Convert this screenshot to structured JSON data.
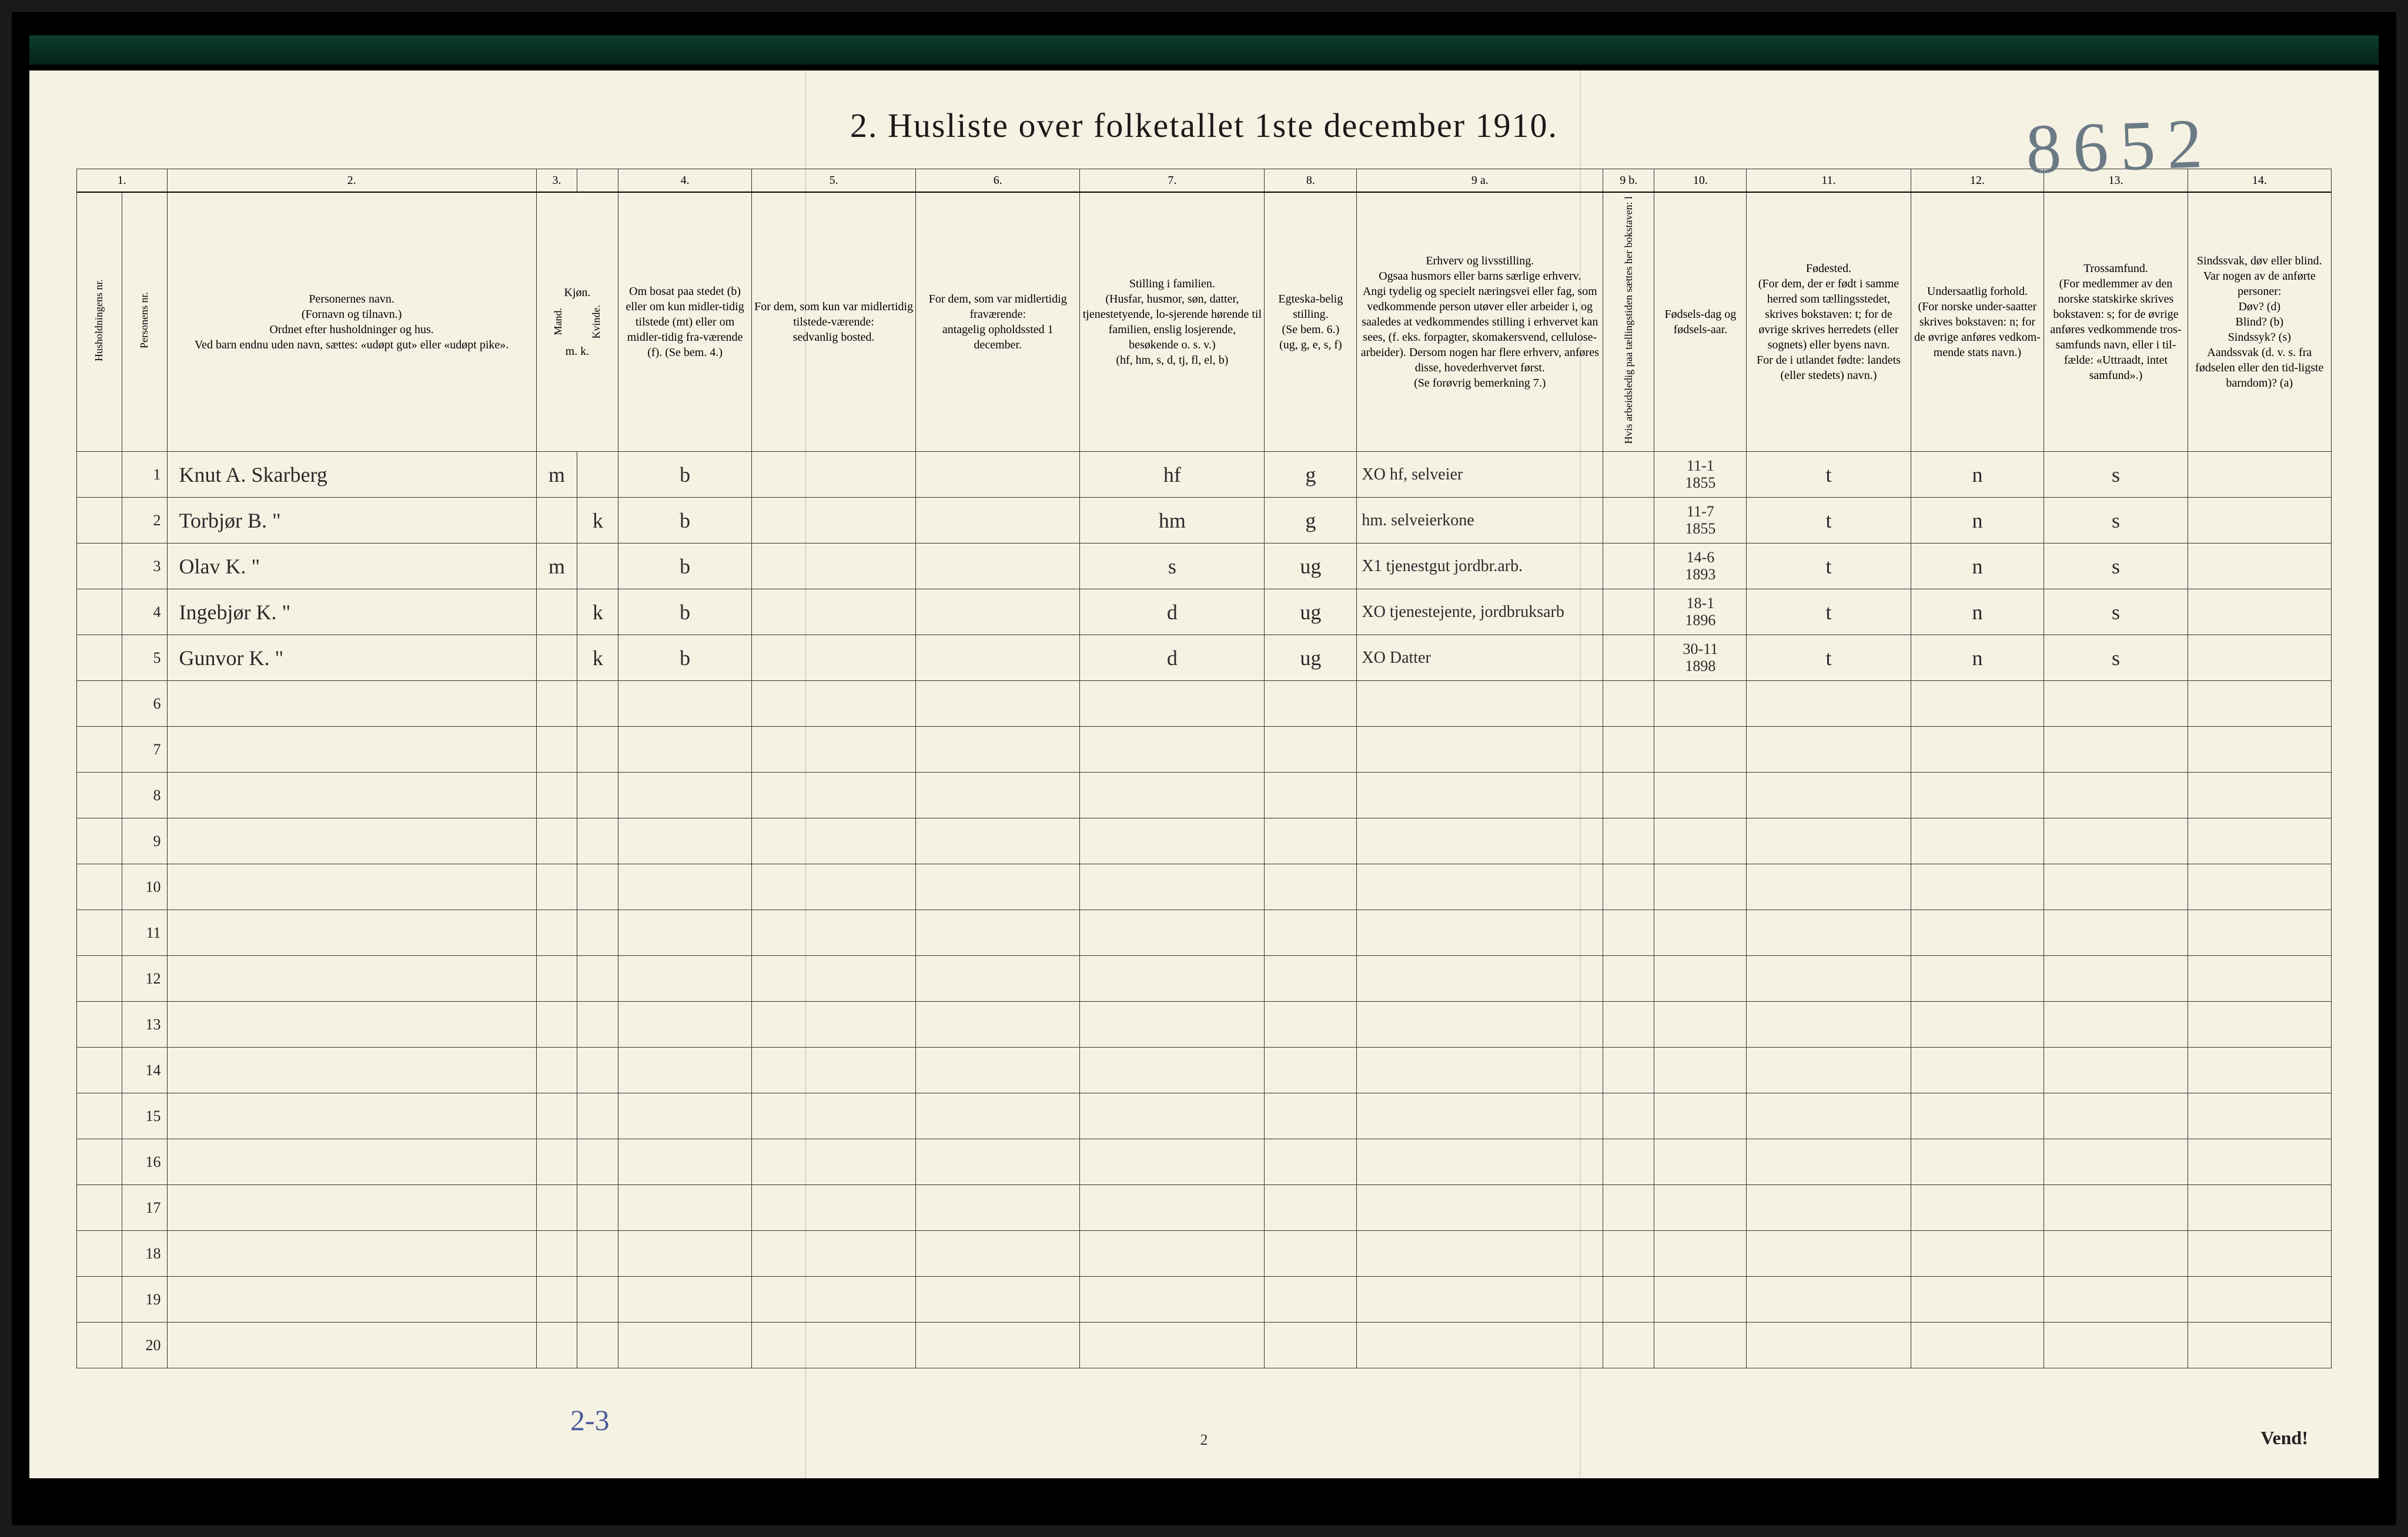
{
  "title": "2.  Husliste over folketallet 1ste december 1910.",
  "hand_page_number": "8652",
  "footer_annotation": "2-3",
  "page_num_bottom": "2",
  "vend": "Vend!",
  "col_widths_pct": [
    2.2,
    2.2,
    18,
    2.0,
    2.0,
    6.5,
    8,
    8,
    9,
    4.5,
    12,
    2.5,
    4.5,
    8,
    6.5,
    7,
    7
  ],
  "col_numbers": [
    "1.",
    "2.",
    "3.",
    "4.",
    "5.",
    "6.",
    "7.",
    "8.",
    "9 a.",
    "9 b.",
    "10.",
    "11.",
    "12.",
    "13.",
    "14."
  ],
  "headers": {
    "c1": "Husholdningens nr.",
    "c1b": "Personens nr.",
    "c2": "Personernes navn.\n(Fornavn og tilnavn.)\nOrdnet efter husholdninger og hus.\nVed barn endnu uden navn, sættes: «udøpt gut» eller «udøpt pike».",
    "c3": "Kjøn.",
    "c3a": "Mand.",
    "c3b": "Kvinde.",
    "c3mk": "m.  k.",
    "c4": "Om bosat paa stedet (b) eller om kun midler-tidig tilstede (mt) eller om midler-tidig fra-værende (f). (Se bem. 4.)",
    "c5": "For dem, som kun var midlertidig tilstede-værende:\nsedvanlig bosted.",
    "c6": "For dem, som var midlertidig fraværende:\nantagelig opholdssted 1 december.",
    "c7": "Stilling i familien.\n(Husfar, husmor, søn, datter, tjenestetyende, lo-sjerende hørende til familien, enslig losjerende, besøkende o. s. v.)\n(hf, hm, s, d, tj, fl, el, b)",
    "c8": "Egteska-belig stilling.\n(Se bem. 6.)\n(ug, g, e, s, f)",
    "c9a": "Erhverv og livsstilling.\nOgsaa husmors eller barns særlige erhverv.\nAngi tydelig og specielt næringsvei eller fag, som vedkommende person utøver eller arbeider i, og saaledes at vedkommendes stilling i erhvervet kan sees, (f. eks. forpagter, skomakersvend, cellulose-arbeider). Dersom nogen har flere erhverv, anføres disse, hovederhvervet først.\n(Se forøvrig bemerkning 7.)",
    "c9b": "Hvis arbeidsledig paa tællingstiden sættes her bokstaven: l",
    "c10": "Fødsels-dag og fødsels-aar.",
    "c11": "Fødested.\n(For dem, der er født i samme herred som tællingsstedet, skrives bokstaven: t; for de øvrige skrives herredets (eller sognets) eller byens navn.\nFor de i utlandet fødte: landets (eller stedets) navn.)",
    "c12": "Undersaatlig forhold.\n(For norske under-saatter skrives bokstaven: n; for de øvrige anføres vedkom-mende stats navn.)",
    "c13": "Trossamfund.\n(For medlemmer av den norske statskirke skrives bokstaven: s; for de øvrige anføres vedkommende tros-samfunds navn, eller i til-fælde: «Uttraadt, intet samfund».)",
    "c14": "Sindssvak, døv eller blind.\nVar nogen av de anførte personer:\nDøv?      (d)\nBlind?    (b)\nSindssyk? (s)\nAandssvak (d. v. s. fra fødselen eller den tid-ligste barndom)? (a)"
  },
  "rows": [
    {
      "num": "1",
      "name": "Knut A. Skarberg",
      "m": "m",
      "k": "",
      "res": "b",
      "c5": "",
      "c6": "",
      "fam": "hf",
      "egt": "g",
      "erhv": "XO  hf, selveier",
      "l": "",
      "fdate": "11-1\n1855",
      "fsted": "t",
      "und": "n",
      "tros": "s",
      "sind": ""
    },
    {
      "num": "2",
      "name": "Torbjør B.      \"",
      "m": "",
      "k": "k",
      "res": "b",
      "c5": "",
      "c6": "",
      "fam": "hm",
      "egt": "g",
      "erhv": "hm. selveierkone",
      "l": "",
      "fdate": "11-7\n1855",
      "fsted": "t",
      "und": "n",
      "tros": "s",
      "sind": ""
    },
    {
      "num": "3",
      "name": "Olav K.      \"",
      "m": "m",
      "k": "",
      "res": "b",
      "c5": "",
      "c6": "",
      "fam": "s",
      "egt": "ug",
      "erhv": "X1 tjenestgut jordbr.arb.",
      "l": "",
      "fdate": "14-6\n1893",
      "fsted": "t",
      "und": "n",
      "tros": "s",
      "sind": ""
    },
    {
      "num": "4",
      "name": "Ingebjør K.  \"",
      "m": "",
      "k": "k",
      "res": "b",
      "c5": "",
      "c6": "",
      "fam": "d",
      "egt": "ug",
      "erhv": "XO tjenestejente, jordbruksarb",
      "l": "",
      "fdate": "18-1\n1896",
      "fsted": "t",
      "und": "n",
      "tros": "s",
      "sind": ""
    },
    {
      "num": "5",
      "name": "Gunvor K.  \"",
      "m": "",
      "k": "k",
      "res": "b",
      "c5": "",
      "c6": "",
      "fam": "d",
      "egt": "ug",
      "erhv": "XO  Datter",
      "l": "",
      "fdate": "30-11\n1898",
      "fsted": "t",
      "und": "n",
      "tros": "s",
      "sind": ""
    },
    {
      "num": "6"
    },
    {
      "num": "7"
    },
    {
      "num": "8"
    },
    {
      "num": "9"
    },
    {
      "num": "10"
    },
    {
      "num": "11"
    },
    {
      "num": "12"
    },
    {
      "num": "13"
    },
    {
      "num": "14"
    },
    {
      "num": "15"
    },
    {
      "num": "16"
    },
    {
      "num": "17"
    },
    {
      "num": "18"
    },
    {
      "num": "19"
    },
    {
      "num": "20"
    }
  ]
}
